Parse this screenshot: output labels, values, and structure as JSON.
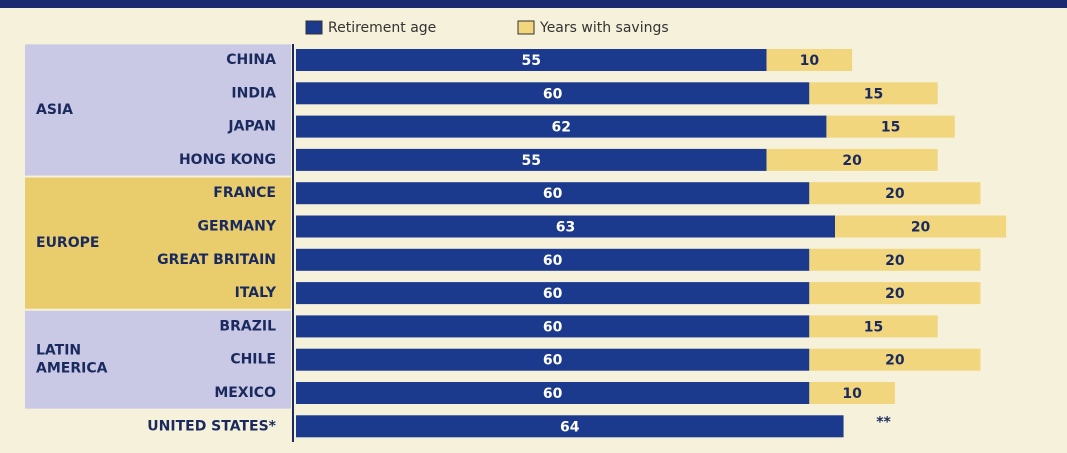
{
  "chart_data": {
    "type": "stacked-bar-horizontal",
    "categories": [
      "CHINA",
      "INDIA",
      "JAPAN",
      "HONG KONG",
      "FRANCE",
      "GERMANY",
      "GREAT BRITAIN",
      "ITALY",
      "BRAZIL",
      "CHILE",
      "MEXICO",
      "UNITED STATES*"
    ],
    "groups": [
      {
        "label": [
          "ASIA"
        ],
        "count": 4,
        "color": "#c9c9e6"
      },
      {
        "label": [
          "EUROPE"
        ],
        "count": 4,
        "color": "#e9cd6c"
      },
      {
        "label": [
          "LATIN",
          "AMERICA"
        ],
        "count": 3,
        "color": "#c9c9e6"
      }
    ],
    "series": [
      {
        "name": "Retirement age",
        "color": "#1b3a8e",
        "label_color": "#ffffff",
        "values": [
          55,
          60,
          62,
          55,
          60,
          63,
          60,
          60,
          60,
          60,
          60,
          64
        ]
      },
      {
        "name": "Years with savings",
        "color": "#f1d67e",
        "label_color": "#1b2a5e",
        "values": [
          10,
          15,
          15,
          20,
          20,
          20,
          20,
          20,
          15,
          20,
          10,
          null
        ],
        "value_labels": [
          "10",
          "15",
          "15",
          "20",
          "20",
          "20",
          "20",
          "20",
          "15",
          "20",
          "10",
          "**"
        ]
      }
    ],
    "xlim": [
      0,
      90
    ]
  }
}
